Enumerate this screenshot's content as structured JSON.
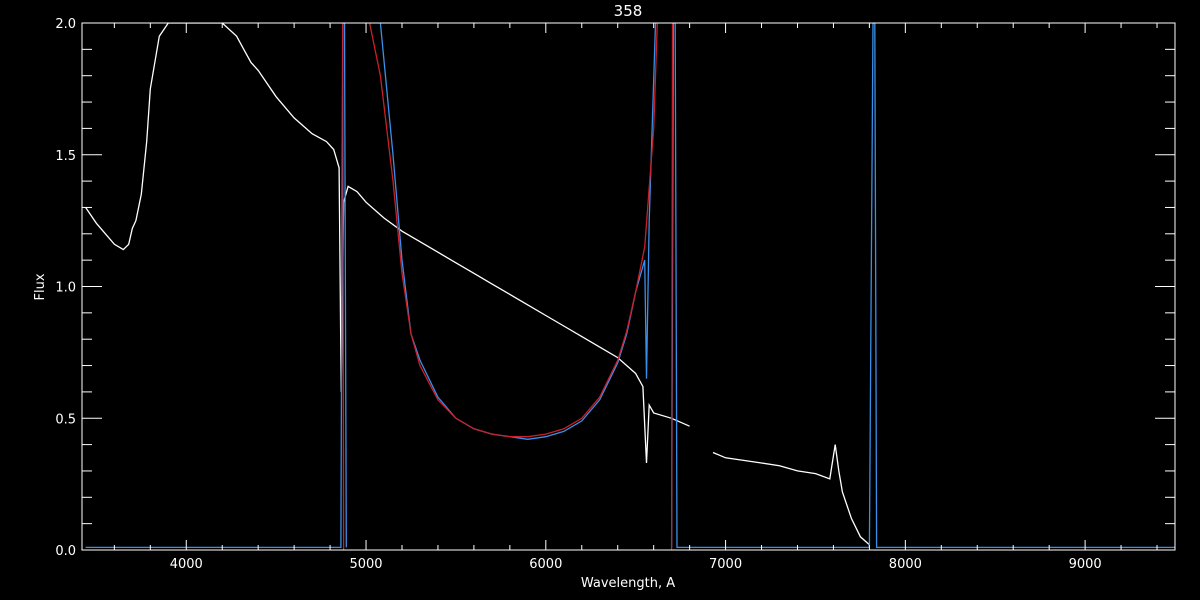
{
  "chart_data": {
    "type": "line",
    "title": "358",
    "xlabel": "Wavelength, A",
    "ylabel": "Flux",
    "xlim": [
      3420,
      9500
    ],
    "ylim": [
      0,
      2.0
    ],
    "xticks_major": [
      4000,
      5000,
      6000,
      7000,
      8000,
      9000
    ],
    "xtick_labels": [
      "4000",
      "5000",
      "6000",
      "7000",
      "8000",
      "9000"
    ],
    "yticks_major": [
      0.0,
      0.5,
      1.0,
      1.5,
      2.0
    ],
    "ytick_labels": [
      "0.0",
      "0.5",
      "1.0",
      "1.5",
      "2.0"
    ],
    "background": "#000000",
    "axis_color": "#ffffff",
    "grid": false,
    "series": [
      {
        "color": "#ffffff",
        "segments": [
          [
            [
              3440,
              1.3
            ],
            [
              3470,
              1.27
            ],
            [
              3500,
              1.24
            ],
            [
              3550,
              1.2
            ],
            [
              3600,
              1.16
            ],
            [
              3650,
              1.14
            ],
            [
              3680,
              1.16
            ],
            [
              3700,
              1.22
            ],
            [
              3720,
              1.25
            ],
            [
              3750,
              1.35
            ],
            [
              3780,
              1.55
            ],
            [
              3800,
              1.75
            ],
            [
              3850,
              1.95
            ],
            [
              3900,
              2.0
            ],
            [
              4000,
              2.0
            ],
            [
              4100,
              2.0
            ],
            [
              4200,
              2.0
            ],
            [
              4280,
              1.95
            ],
            [
              4320,
              1.9
            ],
            [
              4360,
              1.85
            ],
            [
              4400,
              1.82
            ],
            [
              4450,
              1.77
            ],
            [
              4500,
              1.72
            ],
            [
              4600,
              1.64
            ],
            [
              4700,
              1.58
            ],
            [
              4780,
              1.55
            ],
            [
              4820,
              1.52
            ],
            [
              4850,
              1.45
            ],
            [
              4862,
              0.6
            ],
            [
              4875,
              1.32
            ],
            [
              4900,
              1.38
            ],
            [
              4950,
              1.36
            ],
            [
              5000,
              1.32
            ],
            [
              5100,
              1.26
            ],
            [
              5200,
              1.21
            ],
            [
              5300,
              1.17
            ],
            [
              5400,
              1.13
            ],
            [
              5500,
              1.09
            ],
            [
              5600,
              1.05
            ],
            [
              5700,
              1.01
            ],
            [
              5800,
              0.97
            ],
            [
              5900,
              0.93
            ],
            [
              6000,
              0.89
            ],
            [
              6100,
              0.85
            ],
            [
              6200,
              0.81
            ],
            [
              6300,
              0.77
            ],
            [
              6400,
              0.73
            ],
            [
              6500,
              0.67
            ],
            [
              6540,
              0.62
            ],
            [
              6560,
              0.33
            ],
            [
              6575,
              0.55
            ],
            [
              6600,
              0.52
            ],
            [
              6700,
              0.5
            ],
            [
              6800,
              0.47
            ]
          ],
          [
            [
              6930,
              0.37
            ],
            [
              7000,
              0.35
            ],
            [
              7100,
              0.34
            ],
            [
              7200,
              0.33
            ],
            [
              7300,
              0.32
            ],
            [
              7400,
              0.3
            ],
            [
              7500,
              0.29
            ],
            [
              7580,
              0.27
            ],
            [
              7610,
              0.4
            ],
            [
              7630,
              0.3
            ],
            [
              7650,
              0.22
            ],
            [
              7700,
              0.12
            ],
            [
              7750,
              0.05
            ],
            [
              7800,
              0.02
            ]
          ]
        ]
      },
      {
        "color": "#3a8fe8",
        "segments": [
          [
            [
              3440,
              0.01
            ],
            [
              4860,
              0.01
            ],
            [
              4870,
              2.0
            ],
            [
              4880,
              2.0
            ],
            [
              4890,
              0.01
            ]
          ],
          [
            [
              5080,
              2.0
            ],
            [
              5150,
              1.5
            ],
            [
              5200,
              1.1
            ],
            [
              5250,
              0.82
            ],
            [
              5300,
              0.72
            ],
            [
              5400,
              0.58
            ],
            [
              5500,
              0.5
            ],
            [
              5600,
              0.46
            ],
            [
              5700,
              0.44
            ],
            [
              5800,
              0.43
            ],
            [
              5900,
              0.42
            ],
            [
              6000,
              0.43
            ],
            [
              6100,
              0.45
            ],
            [
              6200,
              0.49
            ],
            [
              6300,
              0.57
            ],
            [
              6400,
              0.71
            ],
            [
              6450,
              0.82
            ],
            [
              6500,
              0.98
            ],
            [
              6550,
              1.1
            ],
            [
              6560,
              0.65
            ],
            [
              6575,
              1.25
            ],
            [
              6610,
              2.0
            ]
          ],
          [
            [
              6700,
              0.01
            ],
            [
              6710,
              2.0
            ],
            [
              6720,
              2.0
            ],
            [
              6730,
              0.01
            ],
            [
              7800,
              0.01
            ],
            [
              7820,
              2.0
            ],
            [
              7830,
              2.0
            ],
            [
              7840,
              0.01
            ],
            [
              9500,
              0.01
            ]
          ]
        ]
      },
      {
        "color": "#c8202a",
        "segments": [
          [
            [
              4870,
              2.0
            ],
            [
              4875,
              0.0
            ]
          ],
          [
            [
              5020,
              2.0
            ],
            [
              5080,
              1.8
            ],
            [
              5150,
              1.4
            ],
            [
              5200,
              1.05
            ],
            [
              5250,
              0.82
            ],
            [
              5300,
              0.7
            ],
            [
              5400,
              0.57
            ],
            [
              5500,
              0.5
            ],
            [
              5600,
              0.46
            ],
            [
              5700,
              0.44
            ],
            [
              5800,
              0.43
            ],
            [
              5900,
              0.43
            ],
            [
              6000,
              0.44
            ],
            [
              6100,
              0.46
            ],
            [
              6200,
              0.5
            ],
            [
              6300,
              0.58
            ],
            [
              6400,
              0.72
            ],
            [
              6450,
              0.83
            ],
            [
              6500,
              0.98
            ],
            [
              6550,
              1.15
            ],
            [
              6600,
              1.6
            ],
            [
              6620,
              2.0
            ]
          ],
          [
            [
              6700,
              0.0
            ],
            [
              6705,
              2.0
            ]
          ]
        ]
      }
    ]
  }
}
